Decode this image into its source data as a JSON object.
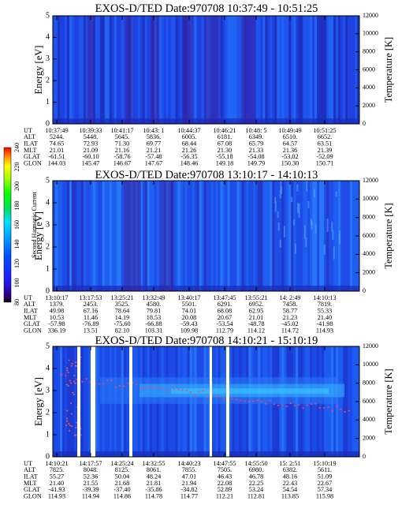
{
  "colorbar": {
    "label": "Second Harmonic Current",
    "ticks": [
      "80",
      "100",
      "120",
      "140",
      "160",
      "180",
      "200",
      "220",
      "240"
    ]
  },
  "chart_data": [
    {
      "type": "heatmap",
      "title": "EXOS-D/TED    Date:970708   10:37:49 - 10:51:25",
      "ylabel": "Energy [eV]",
      "ylabel_right": "Temperature [K]",
      "ylim": [
        0,
        5
      ],
      "y_ticks": [
        "0",
        "1",
        "2",
        "3",
        "4",
        "5"
      ],
      "y2lim": [
        0,
        12000
      ],
      "y2_ticks": [
        "0",
        "2000",
        "4000",
        "6000",
        "8000",
        "10000",
        "12000"
      ],
      "x_tick_marks": [
        "10:37:49",
        "10:51:25"
      ],
      "orbit_rows": [
        "UT",
        "ALT",
        "ILAT",
        "MLT",
        "GLAT",
        "GLON"
      ],
      "orbit_table": [
        [
          "10:37:49",
          "5244.",
          "74.65",
          "21.01",
          "-61.51",
          "144.03"
        ],
        [
          "10:39:33",
          "5448.",
          "72.93",
          "21.09",
          "-60.10",
          "145.47"
        ],
        [
          "10:41:17",
          "5645.",
          "71.30",
          "21.16",
          "-58.76",
          "146.67"
        ],
        [
          "10:43: 1",
          "5836.",
          "69.77",
          "21.21",
          "-57.48",
          "147.67"
        ],
        [
          "10:44:37",
          "6005.",
          "68.44",
          "21.26",
          "-56.35",
          "148.46"
        ],
        [
          "10:46:21",
          "6181.",
          "67.08",
          "21.30",
          "-55.18",
          "149.18"
        ],
        [
          "10:48: 5",
          "6349.",
          "65.79",
          "21.33",
          "-54.08",
          "149.79"
        ],
        [
          "10:49:49",
          "6510.",
          "64.57",
          "21.36",
          "-53.02",
          "150.30"
        ],
        [
          "10:51:25",
          "6652.",
          "63.51",
          "21.39",
          "-52.09",
          "150.71"
        ]
      ]
    },
    {
      "type": "heatmap",
      "title": "EXOS-D/TED    Date:970708   13:10:17 - 14:10:13",
      "ylabel": "Energy [eV]",
      "ylabel_right": "Temperature [K]",
      "ylim": [
        0,
        5
      ],
      "y_ticks": [
        "0",
        "1",
        "2",
        "3",
        "4",
        "5"
      ],
      "y2lim": [
        0,
        12000
      ],
      "y2_ticks": [
        "0",
        "2000",
        "4000",
        "6000",
        "8000",
        "10000",
        "12000"
      ],
      "x_tick_marks": [
        "13:10:17",
        "14:10:13"
      ],
      "orbit_rows": [
        "UT",
        "ALT",
        "ILAT",
        "MLT",
        "GLAT",
        "GLON"
      ],
      "orbit_table": [
        [
          "13:10:17",
          "1379.",
          "49.98",
          "10.53",
          "-57.98",
          "336.19"
        ],
        [
          "13:17:53",
          "2453.",
          "67.16",
          "11.46",
          "-76.89",
          "13.51"
        ],
        [
          "13:25:21",
          "3525.",
          "78.64",
          "14.19",
          "-75.60",
          "82.10"
        ],
        [
          "13:32:49",
          "4580.",
          "79.81",
          "18.53",
          "-66.88",
          "103.31"
        ],
        [
          "13:40:17",
          "5501.",
          "74.01",
          "20.08",
          "-59.43",
          "109.98"
        ],
        [
          "13:47:45",
          "6291.",
          "68.08",
          "20.67",
          "-53.54",
          "112.79"
        ],
        [
          "13:55:21",
          "6952.",
          "62.95",
          "21.01",
          "-48.78",
          "114.12"
        ],
        [
          "14: 2:49",
          "7458.",
          "58.77",
          "21.23",
          "-45.02",
          "114.72"
        ],
        [
          "14:10:13",
          "7819.",
          "55.33",
          "21.40",
          "-41.98",
          "114.93"
        ]
      ]
    },
    {
      "type": "heatmap",
      "title": "EXOS-D/TED    Date:970708   14:10:21 - 15:10:19",
      "ylabel": "Energy [eV]",
      "ylabel_right": "Temperature [K]",
      "ylim": [
        0,
        5
      ],
      "y_ticks": [
        "0",
        "1",
        "2",
        "3",
        "4",
        "5"
      ],
      "y2lim": [
        0,
        12000
      ],
      "y2_ticks": [
        "0",
        "2000",
        "4000",
        "6000",
        "8000",
        "10000",
        "12000"
      ],
      "x_tick_marks": [
        "14:10:21",
        "15:10:19"
      ],
      "orbit_rows": [
        "UT",
        "ALT",
        "ILAT",
        "MLT",
        "GLAT",
        "GLON"
      ],
      "orbit_table": [
        [
          "14:10:21",
          "7825.",
          "55.27",
          "21.40",
          "-41.93",
          "114.93"
        ],
        [
          "14:17:57",
          "8048.",
          "52.36",
          "21.55",
          "-39.39",
          "114.94"
        ],
        [
          "14:25:24",
          "8125.",
          "50.04",
          "21.68",
          "-37.40",
          "114.86"
        ],
        [
          "14:32:55",
          "8061.",
          "48.24",
          "21.81",
          "-35.86",
          "114.78"
        ],
        [
          "14:40:23",
          "7855.",
          "47.01",
          "21.94",
          "-34.82",
          "114.77"
        ],
        [
          "14:47:55",
          "7505.",
          "46.43",
          "22.08",
          "52.89",
          "112.21"
        ],
        [
          "14:55:50",
          "6980.",
          "46.78",
          "22.25",
          "53.24",
          "112.81"
        ],
        [
          "15: 2:51",
          "6382.",
          "48.16",
          "22.43",
          "54.54",
          "113.85"
        ],
        [
          "15:10:19",
          "5611.",
          "51.09",
          "22.67",
          "57.34",
          "115.98"
        ]
      ]
    }
  ]
}
